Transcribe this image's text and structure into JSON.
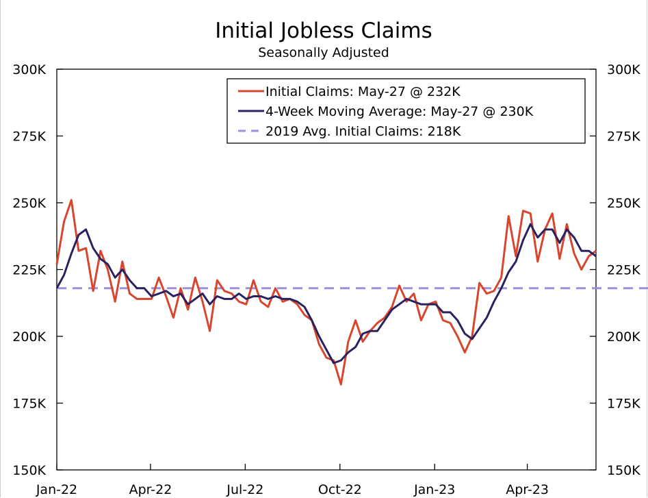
{
  "chart_data": {
    "type": "line",
    "title": "Initial Jobless Claims",
    "subtitle": "Seasonally Adjusted",
    "xlabel": "",
    "ylabel": "",
    "ylim": [
      150,
      300
    ],
    "y_ticks": [
      150,
      175,
      200,
      225,
      250,
      275,
      300
    ],
    "y_tick_labels": [
      "150K",
      "175K",
      "200K",
      "225K",
      "250K",
      "275K",
      "300K"
    ],
    "x_tick_labels": [
      "Jan-22",
      "Apr-22",
      "Jul-22",
      "Oct-22",
      "Jan-23",
      "Apr-23"
    ],
    "x_tick_weeks": [
      0,
      12.86,
      25.86,
      38.86,
      51.86,
      64.57
    ],
    "grid": false,
    "legend_position": "top-right",
    "x_start": "2022-01-01",
    "x_end": "2023-05-27",
    "series": [
      {
        "name": "Initial Claims: May-27 @ 232K",
        "color": "#d9452c",
        "values": [
          227,
          243,
          251,
          232,
          233,
          217,
          232,
          225,
          213,
          228,
          216,
          214,
          214,
          214,
          222,
          215,
          207,
          218,
          210,
          222,
          213,
          202,
          221,
          217,
          216,
          213,
          212,
          221,
          213,
          211,
          218,
          213,
          214,
          212,
          208,
          206,
          197,
          192,
          191,
          182,
          198,
          206,
          198,
          202,
          205,
          207,
          211,
          219,
          213,
          216,
          206,
          212,
          213,
          206,
          205,
          200,
          194,
          200,
          220,
          216,
          217,
          222,
          245,
          230,
          247,
          246,
          228,
          240,
          246,
          229,
          242,
          231,
          225,
          230,
          232
        ],
        "style": "solid"
      },
      {
        "name": "4-Week Moving Average: May-27 @ 230K",
        "color": "#2a2260",
        "values": [
          218,
          223,
          231,
          238,
          240,
          233,
          229,
          227,
          222,
          225,
          221,
          218,
          218,
          215,
          216,
          217,
          215,
          216,
          212,
          214,
          216,
          212,
          215,
          214,
          214,
          216,
          214,
          215,
          215,
          214,
          215,
          214,
          214,
          213,
          211,
          206,
          200,
          195,
          190,
          191,
          194,
          196,
          201,
          202,
          202,
          206,
          210,
          212,
          214,
          213,
          212,
          212,
          212,
          209,
          209,
          206,
          201,
          199,
          203,
          207,
          213,
          218,
          224,
          228,
          236,
          242,
          237,
          240,
          240,
          235,
          240,
          237,
          232,
          232,
          230
        ],
        "style": "solid"
      },
      {
        "name": "2019 Avg. Initial Claims: 218K",
        "color": "#9b8fe0",
        "constant": 218,
        "style": "dashed"
      }
    ]
  }
}
